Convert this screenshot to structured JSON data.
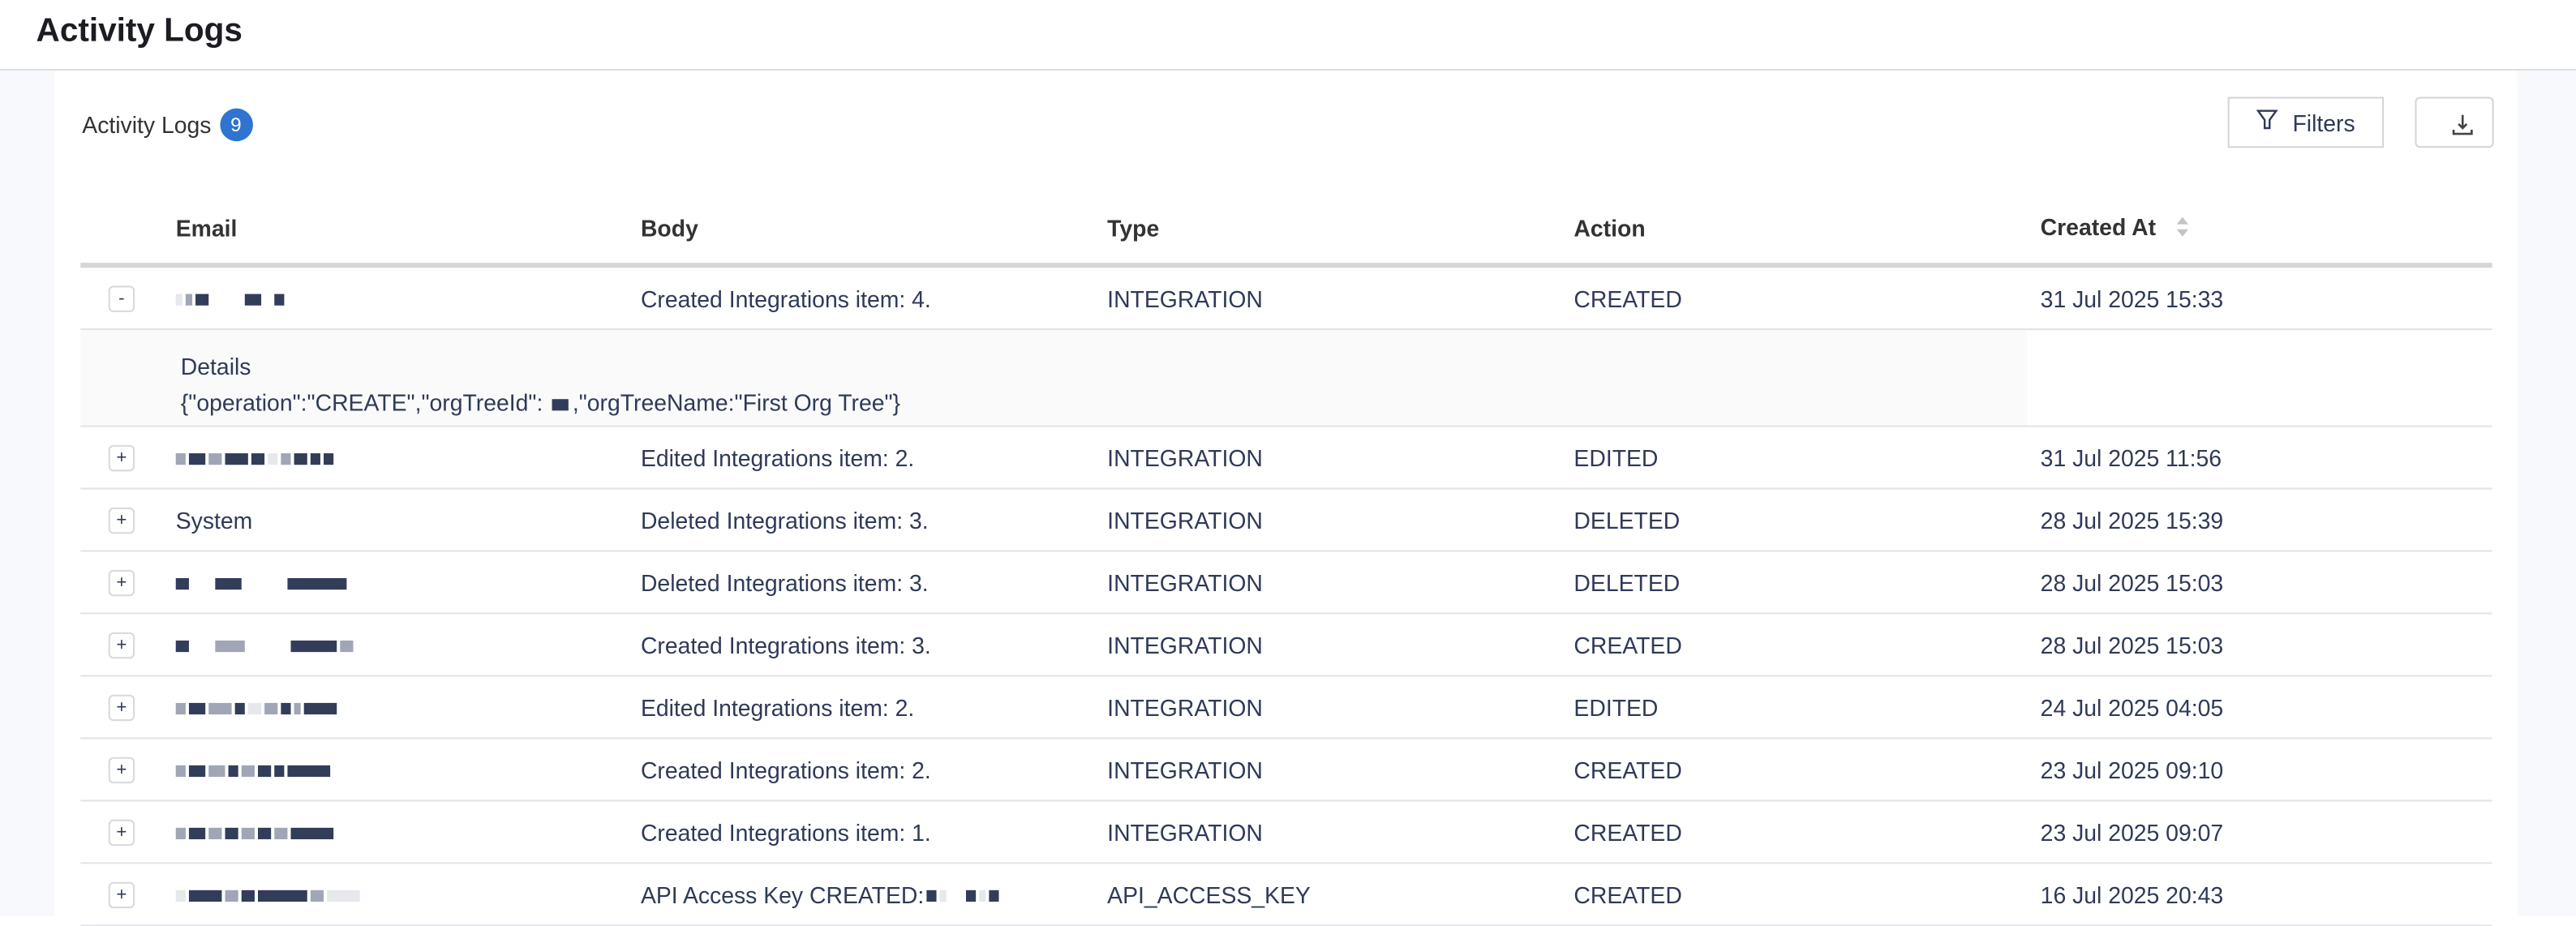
{
  "header": {
    "title": "Activity Logs"
  },
  "section": {
    "title": "Activity Logs",
    "count": "9"
  },
  "toolbar": {
    "filters_label": "Filters",
    "filter_icon": "filter-icon",
    "download_icon": "download-icon"
  },
  "colors": {
    "accent": "#2f74d0",
    "text": "#2f3a58"
  },
  "table": {
    "columns": [
      "Email",
      "Body",
      "Type",
      "Action",
      "Created At"
    ],
    "sortable_column": "Created At",
    "rows": [
      {
        "expander": "-",
        "email": "",
        "email_redacted": true,
        "body": "Created Integrations item: 4.",
        "type": "INTEGRATION",
        "action": "CREATED",
        "created_at": "31 Jul 2025 15:33",
        "expanded": true,
        "details_label": "Details",
        "details_pre": "{\"operation\":\"CREATE\",\"orgTreeId\":",
        "details_post": ",\"orgTreeName:\"First Org Tree\"}"
      },
      {
        "expander": "+",
        "email": "",
        "email_redacted": true,
        "body": "Edited Integrations item: 2.",
        "type": "INTEGRATION",
        "action": "EDITED",
        "created_at": "31 Jul 2025 11:56"
      },
      {
        "expander": "+",
        "email": "System",
        "body": "Deleted Integrations item: 3.",
        "type": "INTEGRATION",
        "action": "DELETED",
        "created_at": "28 Jul 2025 15:39"
      },
      {
        "expander": "+",
        "email": "",
        "email_redacted": true,
        "body": "Deleted Integrations item: 3.",
        "type": "INTEGRATION",
        "action": "DELETED",
        "created_at": "28 Jul 2025 15:03"
      },
      {
        "expander": "+",
        "email": "",
        "email_redacted": true,
        "body": "Created Integrations item: 3.",
        "type": "INTEGRATION",
        "action": "CREATED",
        "created_at": "28 Jul 2025 15:03"
      },
      {
        "expander": "+",
        "email": "",
        "email_redacted": true,
        "body": "Edited Integrations item: 2.",
        "type": "INTEGRATION",
        "action": "EDITED",
        "created_at": "24 Jul 2025 04:05"
      },
      {
        "expander": "+",
        "email": "",
        "email_redacted": true,
        "body": "Created Integrations item: 2.",
        "type": "INTEGRATION",
        "action": "CREATED",
        "created_at": "23 Jul 2025 09:10"
      },
      {
        "expander": "+",
        "email": "",
        "email_redacted": true,
        "body": "Created Integrations item: 1.",
        "type": "INTEGRATION",
        "action": "CREATED",
        "created_at": "23 Jul 2025 09:07"
      },
      {
        "expander": "+",
        "email": "",
        "email_redacted": true,
        "body": "API Access Key CREATED:",
        "type": "API_ACCESS_KEY",
        "action": "CREATED",
        "created_at": "16 Jul 2025 20:43"
      }
    ]
  }
}
